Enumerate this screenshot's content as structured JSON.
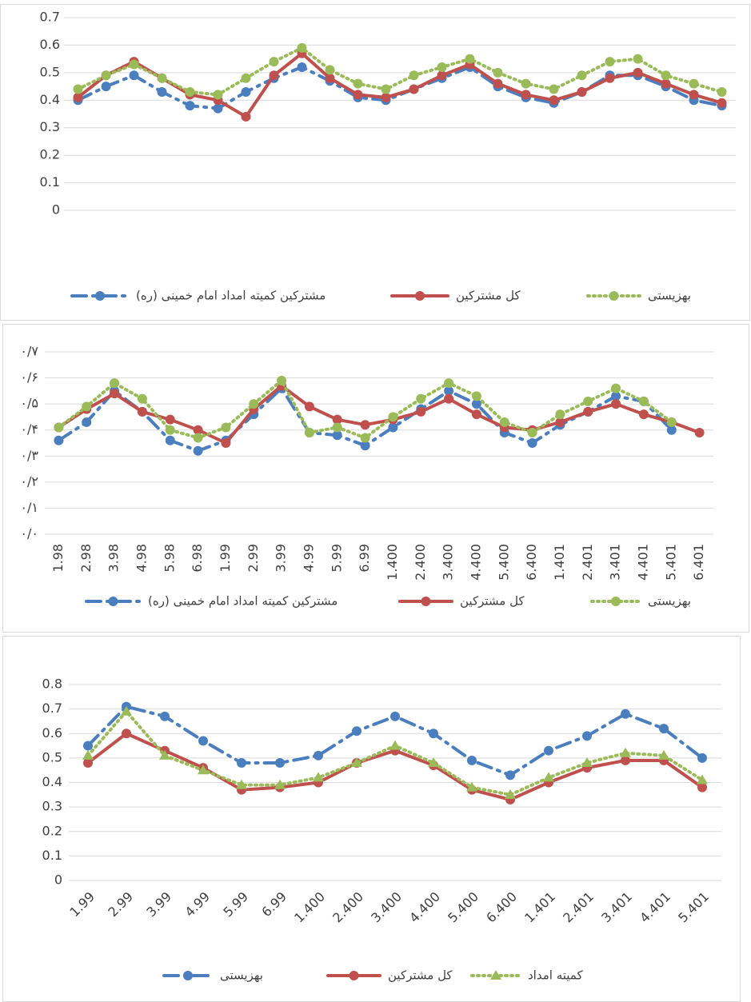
{
  "chart_data": [
    {
      "type": "line",
      "categories": [
        null,
        null,
        null,
        null,
        null,
        null,
        null,
        null,
        null,
        null,
        null,
        null,
        null,
        null,
        null,
        null,
        null,
        null,
        null,
        null,
        null,
        null,
        null,
        null
      ],
      "series": [
        {
          "name": "مشترکین کمیته امداد امام خمینی (ره)",
          "color": "#4a7ebf",
          "style": "dashdot",
          "marker": "circle",
          "values": [
            0.4,
            0.45,
            0.49,
            0.43,
            0.38,
            0.37,
            0.43,
            0.48,
            0.52,
            0.47,
            0.41,
            0.4,
            0.44,
            0.48,
            0.52,
            0.45,
            0.41,
            0.39,
            0.43,
            0.49,
            0.49,
            0.45,
            0.4,
            0.38
          ]
        },
        {
          "name": "کل مشترکین",
          "color": "#c0504d",
          "style": "solid",
          "marker": "circle",
          "values": [
            0.41,
            0.49,
            0.54,
            0.48,
            0.42,
            0.4,
            0.34,
            0.49,
            0.57,
            0.48,
            0.42,
            0.41,
            0.44,
            0.49,
            0.53,
            0.46,
            0.42,
            0.4,
            0.43,
            0.48,
            0.5,
            0.46,
            0.42,
            0.39
          ]
        },
        {
          "name": "بهزیستی",
          "color": "#9bbb59",
          "style": "dotted",
          "marker": "circle",
          "values": [
            0.44,
            0.49,
            0.53,
            0.48,
            0.43,
            0.42,
            0.48,
            0.54,
            0.59,
            0.51,
            0.46,
            0.44,
            0.49,
            0.52,
            0.55,
            0.5,
            0.46,
            0.44,
            0.49,
            0.54,
            0.55,
            0.49,
            0.46,
            0.43
          ]
        }
      ],
      "ylim": [
        0,
        0.7
      ],
      "yticks": [
        0,
        0.1,
        0.2,
        0.3,
        0.4,
        0.5,
        0.6,
        0.7
      ],
      "grid": true,
      "legend": "bottom"
    },
    {
      "type": "line",
      "categories": [
        "1.98",
        "2.98",
        "3.98",
        "4.98",
        "5.98",
        "6.98",
        "1.99",
        "2.99",
        "3.99",
        "4.99",
        "5.99",
        "6.99",
        "1.400",
        "2.400",
        "3.400",
        "4.400",
        "5.400",
        "6.400",
        "1.401",
        "2.401",
        "3.401",
        "4.401",
        "5.401",
        "6.401"
      ],
      "series": [
        {
          "name": "مشترکین کمیته امداد امام خمینی (ره)",
          "color": "#4a7ebf",
          "style": "dashdot",
          "marker": "circle",
          "values": [
            0.36,
            0.43,
            0.55,
            0.47,
            0.36,
            0.32,
            0.36,
            0.46,
            0.56,
            0.39,
            0.38,
            0.34,
            0.41,
            0.48,
            0.55,
            0.5,
            0.39,
            0.35,
            0.42,
            0.47,
            0.53,
            0.51,
            0.4,
            null
          ]
        },
        {
          "name": "کل مشترکین",
          "color": "#c0504d",
          "style": "solid",
          "marker": "circle",
          "values": [
            0.41,
            0.48,
            0.54,
            0.47,
            0.44,
            0.4,
            0.35,
            0.48,
            0.57,
            0.49,
            0.44,
            0.42,
            0.44,
            0.47,
            0.52,
            0.46,
            0.41,
            0.4,
            0.43,
            0.47,
            0.5,
            0.46,
            0.43,
            0.39
          ]
        },
        {
          "name": "بهزیستی",
          "color": "#9bbb59",
          "style": "dotted",
          "marker": "circle",
          "values": [
            0.41,
            0.49,
            0.58,
            0.52,
            0.4,
            0.37,
            0.41,
            0.5,
            0.59,
            0.39,
            0.41,
            0.37,
            0.45,
            0.52,
            0.58,
            0.53,
            0.43,
            0.39,
            0.46,
            0.51,
            0.56,
            0.51,
            0.43,
            null
          ]
        }
      ],
      "ylim": [
        0,
        0.7
      ],
      "yticks": [
        {
          "value": 0,
          "label": "۰/۰"
        },
        {
          "value": 0.1,
          "label": "۰/۱"
        },
        {
          "value": 0.2,
          "label": "۰/۲"
        },
        {
          "value": 0.3,
          "label": "۰/۳"
        },
        {
          "value": 0.4,
          "label": "۰/۴"
        },
        {
          "value": 0.5,
          "label": "۰/۵"
        },
        {
          "value": 0.6,
          "label": "۰/۶"
        },
        {
          "value": 0.7,
          "label": "۰/۷"
        }
      ],
      "grid": true,
      "legend": "bottom"
    },
    {
      "type": "line",
      "categories": [
        "1.99",
        "2.99",
        "3.99",
        "4.99",
        "5.99",
        "6.99",
        "1.400",
        "2.400",
        "3.400",
        "4.400",
        "5.400",
        "6.400",
        "1.401",
        "2.401",
        "3.401",
        "4.401",
        "5.401"
      ],
      "series": [
        {
          "name": "بهزیستی",
          "color": "#4a7ebf",
          "style": "dashdot",
          "marker": "circle",
          "values": [
            0.55,
            0.71,
            0.67,
            0.57,
            0.48,
            0.48,
            0.51,
            0.61,
            0.67,
            0.6,
            0.49,
            0.43,
            0.53,
            0.59,
            0.68,
            0.62,
            0.5
          ]
        },
        {
          "name": "کل مشترکین",
          "color": "#c0504d",
          "style": "solid",
          "marker": "circle",
          "values": [
            0.48,
            0.6,
            0.53,
            0.46,
            0.37,
            0.38,
            0.4,
            0.48,
            0.53,
            0.47,
            0.37,
            0.33,
            0.4,
            0.46,
            0.49,
            0.49,
            0.38
          ]
        },
        {
          "name": "کمیته امداد",
          "color": "#9bbb59",
          "style": "dotted",
          "marker": "triangle",
          "values": [
            0.51,
            0.69,
            0.51,
            0.45,
            0.39,
            0.39,
            0.42,
            0.48,
            0.55,
            0.48,
            0.38,
            0.35,
            0.42,
            0.48,
            0.52,
            0.51,
            0.41
          ]
        }
      ],
      "ylim": [
        0,
        0.8
      ],
      "yticks": [
        0,
        0.1,
        0.2,
        0.3,
        0.4,
        0.5,
        0.6,
        0.7,
        0.8
      ],
      "grid": true,
      "legend": "bottom"
    }
  ]
}
